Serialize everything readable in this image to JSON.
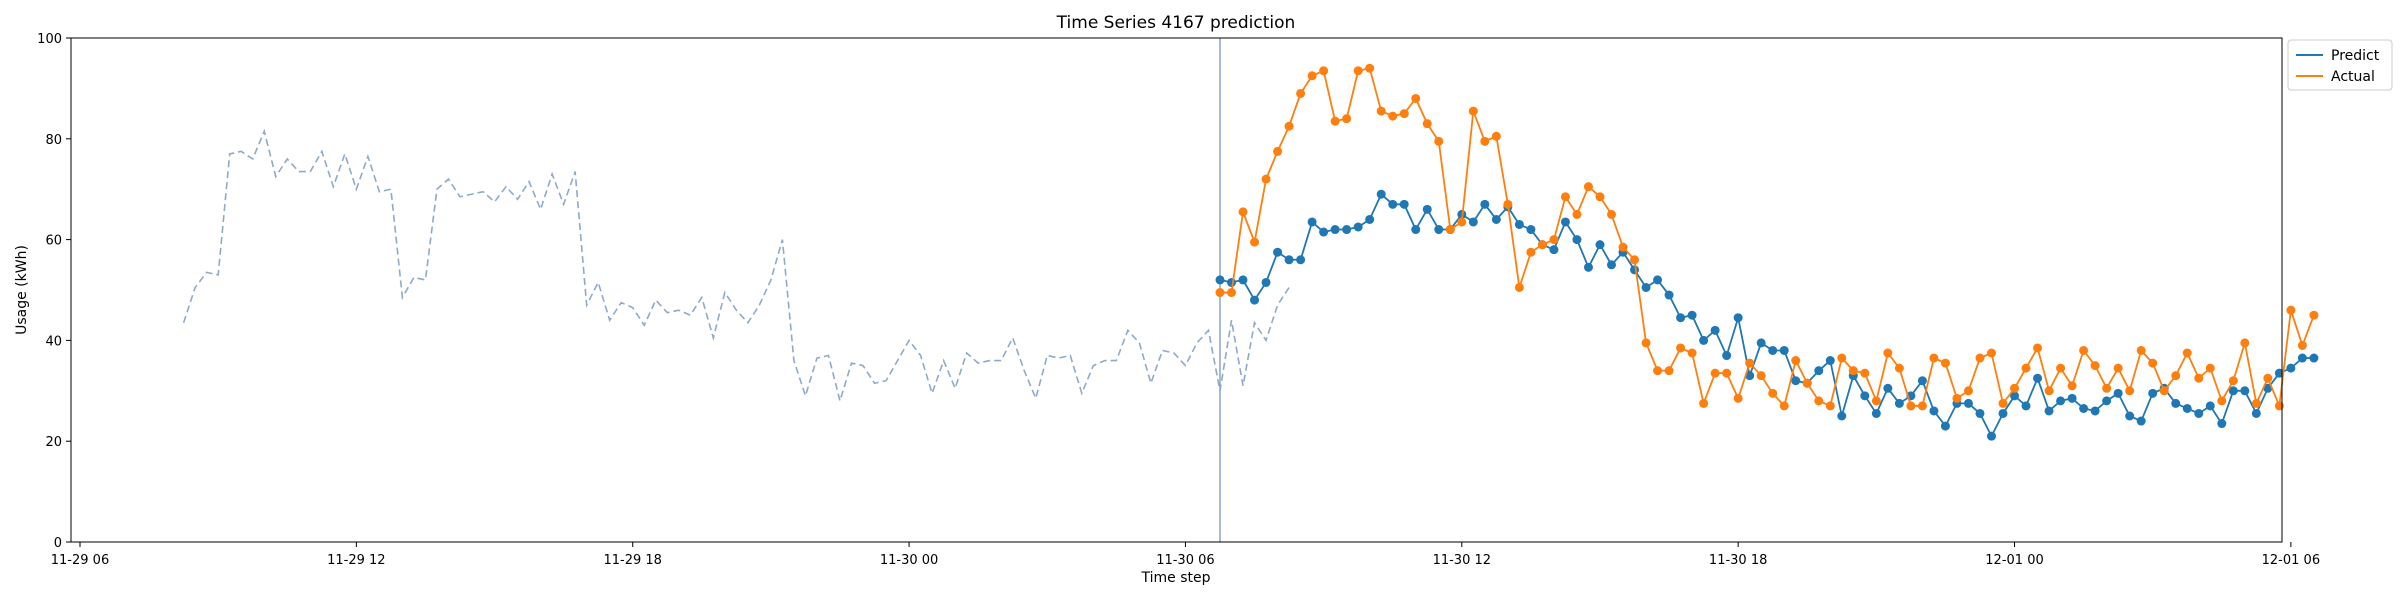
{
  "chart_data": {
    "type": "line",
    "title": "Time Series 4167 prediction",
    "xlabel": "Time step",
    "ylabel": "Usage (kWh)",
    "x_unit": "hours since 11-29 06:00",
    "xlim": [
      0,
      49.5
    ],
    "ylim": [
      0,
      100
    ],
    "x_ticks": [
      {
        "value": 0,
        "label": "11-29 06"
      },
      {
        "value": 6,
        "label": "11-29 12"
      },
      {
        "value": 12,
        "label": "11-29 18"
      },
      {
        "value": 18,
        "label": "11-30 00"
      },
      {
        "value": 24,
        "label": "11-30 06"
      },
      {
        "value": 30,
        "label": "11-30 12"
      },
      {
        "value": 36,
        "label": "11-30 18"
      },
      {
        "value": 42,
        "label": "12-01 00"
      },
      {
        "value": 48,
        "label": "12-01 06"
      }
    ],
    "y_ticks": [
      0,
      20,
      40,
      60,
      80,
      100
    ],
    "forecast_start": 24.75,
    "legend": {
      "position": "top-right outside",
      "entries": [
        "Predict",
        "Actual"
      ]
    },
    "colors": {
      "history": "#8fa9cb",
      "predict": "#1f77b4",
      "actual": "#ff7f0e",
      "divider": "#8fa3c8"
    },
    "history": {
      "x_start": 2.25,
      "x_step": 0.25,
      "values": [
        43.5,
        50.5,
        53.5,
        53,
        77,
        77.5,
        76,
        81.5,
        72.5,
        76,
        73.5,
        73.5,
        77.5,
        70.5,
        77,
        70,
        76.5,
        69.5,
        70,
        48.5,
        52.5,
        52,
        70,
        72,
        68.5,
        69,
        69.5,
        67.5,
        70.5,
        68,
        71.5,
        66,
        73,
        67,
        73.5,
        47,
        51.5,
        44,
        47.5,
        46.5,
        43,
        48,
        45.5,
        46,
        45,
        48.5,
        40.5,
        49.5,
        46,
        43.5,
        47,
        52,
        60,
        36,
        29,
        36.5,
        37,
        28,
        35.5,
        35,
        31.5,
        32,
        36,
        40,
        37,
        29.5,
        36,
        30.5,
        37.5,
        35.5,
        36,
        36,
        40.5,
        34,
        28.5,
        37,
        36.5,
        37,
        29.5,
        35,
        36,
        36,
        42,
        39.5,
        31.5,
        38,
        37.5,
        35,
        39.5,
        42,
        30,
        44,
        31,
        43.5,
        40,
        47,
        50.5
      ]
    },
    "series": [
      {
        "name": "Predict",
        "x_start": 24.75,
        "x_step": 0.25,
        "values": [
          52,
          51.5,
          52,
          48,
          51.5,
          57.5,
          56,
          56,
          63.5,
          61.5,
          62,
          62,
          62.5,
          64,
          69,
          67,
          67,
          62,
          66,
          62,
          62,
          65,
          63.5,
          67,
          64,
          66.5,
          63,
          62,
          59,
          58,
          63.5,
          60,
          54.5,
          59,
          55,
          57.5,
          54,
          50.5,
          52,
          49,
          44.5,
          45,
          40,
          42,
          37,
          44.5,
          33,
          39.5,
          38,
          38,
          32,
          31.5,
          34,
          36,
          25,
          33,
          29,
          25.5,
          30.5,
          27.5,
          29,
          32,
          26,
          23,
          27.5,
          27.5,
          25.5,
          21,
          25.5,
          29,
          27,
          32.5,
          26,
          28,
          28.5,
          26.5,
          26,
          28,
          29.5,
          25,
          24,
          29.5,
          30.5,
          27.5,
          26.5,
          25.5,
          27,
          23.5,
          30,
          30,
          25.5,
          30.5,
          33.5,
          34.5,
          36.5,
          36.5
        ]
      },
      {
        "name": "Actual",
        "x_start": 24.75,
        "x_step": 0.25,
        "values": [
          49.5,
          49.5,
          65.5,
          59.5,
          72,
          77.5,
          82.5,
          89,
          92.5,
          93.5,
          83.5,
          84,
          93.5,
          94,
          85.5,
          84.5,
          85,
          88,
          83,
          79.5,
          62,
          63.5,
          85.5,
          79.5,
          80.5,
          67,
          50.5,
          57.5,
          59,
          60,
          68.5,
          65,
          70.5,
          68.5,
          65,
          58.5,
          56,
          39.5,
          34,
          34,
          38.5,
          37.5,
          27.5,
          33.5,
          33.5,
          28.5,
          35.5,
          33,
          29.5,
          27,
          36,
          31.5,
          28,
          27,
          36.5,
          34,
          33.5,
          28,
          37.5,
          34.5,
          27,
          27,
          36.5,
          35.5,
          28.5,
          30,
          36.5,
          37.5,
          27.5,
          30.5,
          34.5,
          38.5,
          30,
          34.5,
          31,
          38,
          35,
          30.5,
          34.5,
          30,
          38,
          35.5,
          30,
          33,
          37.5,
          32.5,
          34.5,
          28,
          32,
          39.5,
          27.5,
          32.5,
          27,
          46,
          39,
          45
        ]
      }
    ]
  }
}
